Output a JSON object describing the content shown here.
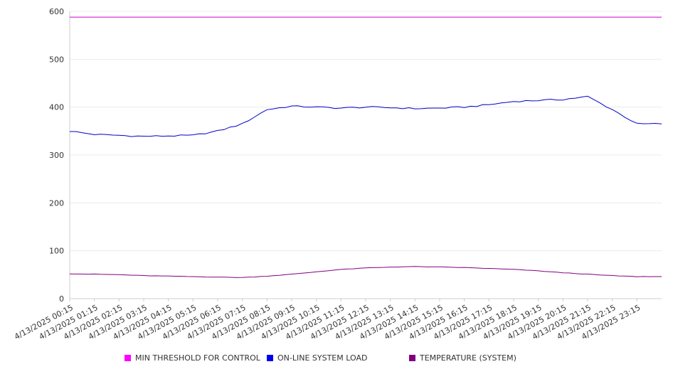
{
  "chart_data": {
    "type": "line",
    "title": "",
    "xlabel": "",
    "ylabel": "",
    "ylim": [
      0,
      600
    ],
    "y_ticks": [
      0,
      100,
      200,
      300,
      400,
      500,
      600
    ],
    "grid": "horizontal",
    "legend_position": "bottom",
    "x_ticks": [
      "4/13/2025 00:15",
      "4/13/2025 01:15",
      "4/13/2025 02:15",
      "4/13/2025 03:15",
      "4/13/2025 04:15",
      "4/13/2025 05:15",
      "4/13/2025 06:15",
      "4/13/2025 07:15",
      "4/13/2025 08:15",
      "4/13/2025 09:15",
      "4/13/2025 10:15",
      "4/13/2025 11:15",
      "4/13/2025 12:15",
      "4/13/2025 13:15",
      "4/13/2025 14:15",
      "4/13/2025 15:15",
      "4/13/2025 16:15",
      "4/13/2025 17:15",
      "4/13/2025 18:15",
      "4/13/2025 19:15",
      "4/13/2025 20:15",
      "4/13/2025 21:15",
      "4/13/2025 22:15",
      "4/13/2025 23:15"
    ],
    "series": [
      {
        "name": "MIN THRESHOLD FOR CONTROL",
        "color": "#cc00cc",
        "values": [
          588,
          588,
          588,
          588,
          588,
          588,
          588,
          588,
          588,
          588,
          588,
          588,
          588,
          588,
          588,
          588,
          588,
          588,
          588,
          588,
          588,
          588,
          588,
          588
        ]
      },
      {
        "name": "ON-LINE SYSTEM LOAD",
        "color": "#0000cc",
        "values": [
          350,
          343,
          341,
          339,
          340,
          341,
          350,
          365,
          395,
          402,
          400,
          398,
          400,
          399,
          397,
          398,
          400,
          405,
          412,
          414,
          416,
          422,
          395,
          365
        ]
      },
      {
        "name": "TEMPERATURE (SYSTEM)",
        "color": "#800080",
        "values": [
          52,
          51,
          50,
          48,
          47,
          46,
          45,
          44,
          47,
          51,
          56,
          61,
          64,
          66,
          67,
          66,
          65,
          63,
          61,
          58,
          54,
          51,
          48,
          46
        ]
      }
    ]
  }
}
